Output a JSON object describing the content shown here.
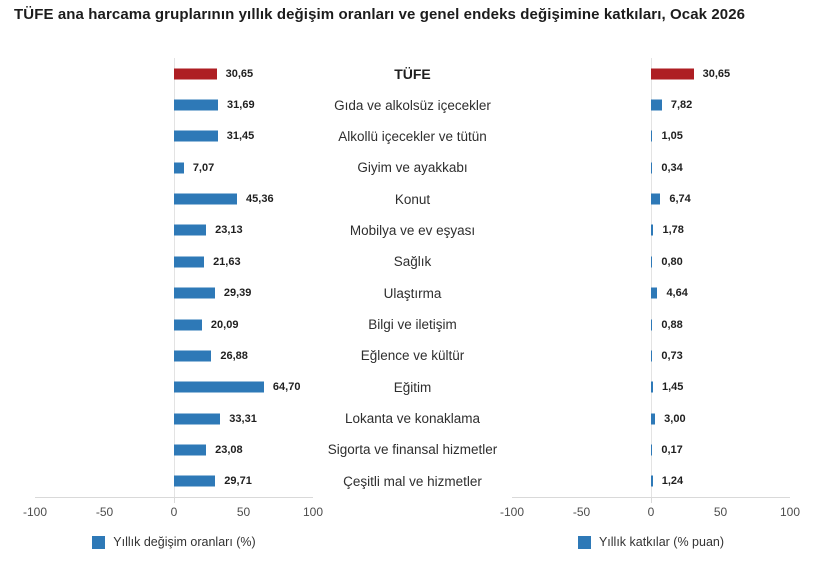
{
  "title": "TÜFE ana harcama gruplarının yıllık değişim oranları ve genel endeks değişimine katkıları, Ocak 2026",
  "colors": {
    "bar_blue": "#2e79b7",
    "bar_red": "#ae1e23",
    "axis_line": "#d9d9d9",
    "zero_gridline": "#e3e3e3"
  },
  "axis": {
    "min": -100,
    "max": 100,
    "tick_labels": [
      "-100",
      "-50",
      "0",
      "50",
      "100"
    ],
    "tick_positions_pct": [
      0,
      25,
      50,
      75,
      100
    ]
  },
  "chart_data": [
    {
      "type": "bar",
      "orientation": "horizontal",
      "legend": "Yıllık değişim oranları (%)",
      "categories": [
        "TÜFE",
        "Gıda ve alkolsüz içecekler",
        "Alkollü içecekler ve tütün",
        "Giyim ve ayakkabı",
        "Konut",
        "Mobilya ve ev eşyası",
        "Sağlık",
        "Ulaştırma",
        "Bilgi ve iletişim",
        "Eğlence ve kültür",
        "Eğitim",
        "Lokanta ve konaklama",
        "Sigorta ve finansal hizmetler",
        "Çeşitli mal ve hizmetler"
      ],
      "values": [
        30.65,
        31.69,
        31.45,
        7.07,
        45.36,
        23.13,
        21.63,
        29.39,
        20.09,
        26.88,
        64.7,
        33.31,
        23.08,
        29.71
      ],
      "value_labels": [
        "30,65",
        "31,69",
        "31,45",
        "7,07",
        "45,36",
        "23,13",
        "21,63",
        "29,39",
        "20,09",
        "26,88",
        "64,70",
        "33,31",
        "23,08",
        "29,71"
      ],
      "xlim": [
        -100,
        100
      ],
      "xticks": [
        -100,
        -50,
        0,
        50,
        100
      ],
      "highlight_index": 0,
      "grid": "zero-line-only",
      "legend_position": "bottom-center"
    },
    {
      "type": "bar",
      "orientation": "horizontal",
      "legend": "Yıllık katkılar (% puan)",
      "categories": [
        "TÜFE",
        "Gıda ve alkolsüz içecekler",
        "Alkollü içecekler ve tütün",
        "Giyim ve ayakkabı",
        "Konut",
        "Mobilya ve ev eşyası",
        "Sağlık",
        "Ulaştırma",
        "Bilgi ve iletişim",
        "Eğlence ve kültür",
        "Eğitim",
        "Lokanta ve konaklama",
        "Sigorta ve finansal hizmetler",
        "Çeşitli mal ve hizmetler"
      ],
      "values": [
        30.65,
        7.82,
        1.05,
        0.34,
        6.74,
        1.78,
        0.8,
        4.64,
        0.88,
        0.73,
        1.45,
        3.0,
        0.17,
        1.24
      ],
      "value_labels": [
        "30,65",
        "7,82",
        "1,05",
        "0,34",
        "6,74",
        "1,78",
        "0,80",
        "4,64",
        "0,88",
        "0,73",
        "1,45",
        "3,00",
        "0,17",
        "1,24"
      ],
      "xlim": [
        -100,
        100
      ],
      "xticks": [
        -100,
        -50,
        0,
        50,
        100
      ],
      "highlight_index": 0,
      "grid": "zero-line-only",
      "legend_position": "bottom-center"
    }
  ]
}
